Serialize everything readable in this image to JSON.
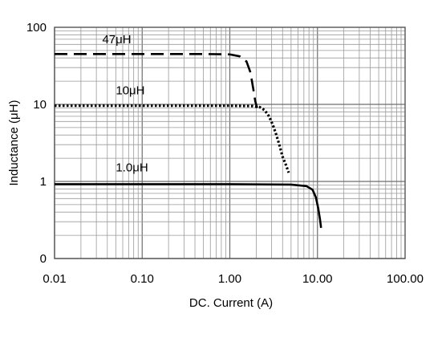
{
  "chart_data": {
    "type": "line",
    "xlabel": "DC. Current (A)",
    "ylabel": "Inductance (μH)",
    "x_scale": "log",
    "y_scale": "log",
    "xlim": [
      0.01,
      100
    ],
    "ylim": [
      0.1,
      100
    ],
    "grid": true,
    "x_ticks": [
      {
        "value": 0.01,
        "label": "0.01"
      },
      {
        "value": 0.1,
        "label": "0.10"
      },
      {
        "value": 1,
        "label": "1.00"
      },
      {
        "value": 10,
        "label": "10.00"
      },
      {
        "value": 100,
        "label": "100.00"
      }
    ],
    "y_ticks": [
      {
        "value": 100,
        "label": "100"
      },
      {
        "value": 10,
        "label": "10"
      },
      {
        "value": 1,
        "label": "1"
      },
      {
        "value": 0.1,
        "label": "0"
      }
    ],
    "series": [
      {
        "name": "47μH",
        "style": "dashed",
        "color": "#000000",
        "label_at": [
          0.035,
          62
        ],
        "x": [
          0.01,
          0.1,
          0.5,
          1.0,
          1.3,
          1.55,
          1.72,
          1.85,
          1.95,
          2.05
        ],
        "y": [
          45,
          45,
          45,
          44.5,
          42,
          36,
          26,
          16,
          11,
          9
        ]
      },
      {
        "name": "10μH",
        "style": "dotted",
        "color": "#000000",
        "label_at": [
          0.05,
          13.5
        ],
        "x": [
          0.01,
          0.1,
          1.0,
          1.8,
          2.2,
          2.5,
          2.8,
          3.1,
          3.4,
          3.7,
          4.0,
          4.4,
          4.7
        ],
        "y": [
          9.6,
          9.6,
          9.6,
          9.5,
          9.2,
          8.4,
          7.0,
          5.4,
          4.0,
          2.9,
          2.1,
          1.6,
          1.3
        ]
      },
      {
        "name": "1.0μH",
        "style": "solid",
        "color": "#000000",
        "label_at": [
          0.05,
          1.35
        ],
        "x": [
          0.01,
          0.1,
          1.0,
          5.0,
          7.5,
          8.8,
          9.6,
          10.2,
          10.7,
          11.0
        ],
        "y": [
          0.92,
          0.92,
          0.92,
          0.91,
          0.87,
          0.78,
          0.62,
          0.45,
          0.32,
          0.25
        ]
      }
    ]
  }
}
